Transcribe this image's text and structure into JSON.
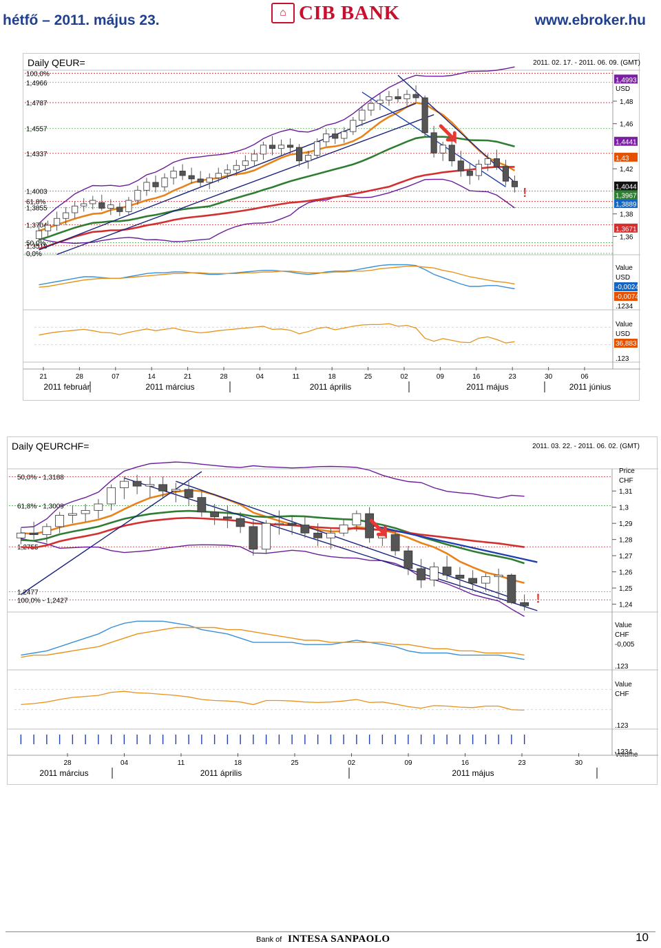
{
  "header": {
    "date": "hétfő – 2011. május 23.",
    "bank": "CIB BANK",
    "site": "www.ebroker.hu"
  },
  "footer": {
    "bank_of": "Bank of",
    "intesa": "INTESA SANPAOLO",
    "page": "10"
  },
  "colors": {
    "ma_orange": "#e8821a",
    "ma_green": "#2e7d32",
    "ma_red": "#d32f2f",
    "band_purple": "#6a1b9a",
    "trend_navy": "#1a237e",
    "trend_blue": "#1e3fb0",
    "osc_blue": "#3a8fd6",
    "osc_orange": "#e8921a",
    "fib_green": "#4caf50",
    "fib_red": "#c62828",
    "label_purple": "#7b1fa2",
    "label_blue": "#1565c0",
    "label_orange": "#e65100",
    "label_black": "#111111",
    "label_red": "#d32f2f",
    "signal_red": "#e53935"
  },
  "chart_data": [
    {
      "type": "candlestick",
      "title": "Daily QEUR=",
      "range": "2011. 02. 17. - 2011. 06. 09. (GMT)",
      "price_unit": "USD",
      "ylim": [
        1.345,
        1.505
      ],
      "y_ticks": [
        "1,48",
        "1,46",
        "1,42",
        "1,38",
        "1,36"
      ],
      "fib_levels": [
        {
          "label": "100,0%",
          "value": 1.5048
        },
        {
          "label": "1,4966",
          "value": 1.4966
        },
        {
          "label": "1,4787",
          "value": 1.4787
        },
        {
          "label": "1,4557",
          "value": 1.4557
        },
        {
          "label": "1,4337",
          "value": 1.4337
        },
        {
          "label": "1,4003",
          "value": 1.4003
        },
        {
          "label": "61,8%",
          "value": 1.391
        },
        {
          "label": "1,3855",
          "value": 1.3855
        },
        {
          "label": "1,3704",
          "value": 1.3704
        },
        {
          "label": "50,0%",
          "value": 1.3545
        },
        {
          "label": "1,3518",
          "value": 1.3518
        },
        {
          "label": "0,0%",
          "value": 1.345
        }
      ],
      "value_labels": [
        {
          "text": "1,4993",
          "value": 1.4993,
          "color": "label_purple"
        },
        {
          "text": "USD",
          "value": 1.4915,
          "color": "none"
        },
        {
          "text": "1,4441",
          "value": 1.4441,
          "color": "label_purple"
        },
        {
          "text": "1,43",
          "value": 1.43,
          "color": "label_orange"
        },
        {
          "text": "1,4044",
          "value": 1.4044,
          "color": "label_black"
        },
        {
          "text": "1,3967",
          "value": 1.3967,
          "color": "label_green"
        },
        {
          "text": "1,3889",
          "value": 1.3889,
          "color": "label_blue"
        },
        {
          "text": "1,3671",
          "value": 1.3671,
          "color": "label_red"
        }
      ],
      "ohlc": [
        [
          1.358,
          1.372,
          1.352,
          1.365
        ],
        [
          1.365,
          1.374,
          1.36,
          1.37
        ],
        [
          1.37,
          1.382,
          1.365,
          1.376
        ],
        [
          1.376,
          1.386,
          1.37,
          1.381
        ],
        [
          1.381,
          1.391,
          1.376,
          1.387
        ],
        [
          1.387,
          1.394,
          1.382,
          1.389
        ],
        [
          1.389,
          1.396,
          1.384,
          1.392
        ],
        [
          1.39,
          1.397,
          1.383,
          1.385
        ],
        [
          1.385,
          1.393,
          1.379,
          1.388
        ],
        [
          1.386,
          1.39,
          1.378,
          1.382
        ],
        [
          1.382,
          1.395,
          1.379,
          1.392
        ],
        [
          1.392,
          1.405,
          1.388,
          1.401
        ],
        [
          1.401,
          1.412,
          1.396,
          1.408
        ],
        [
          1.408,
          1.414,
          1.399,
          1.404
        ],
        [
          1.404,
          1.416,
          1.4,
          1.412
        ],
        [
          1.412,
          1.422,
          1.406,
          1.418
        ],
        [
          1.418,
          1.424,
          1.41,
          1.414
        ],
        [
          1.414,
          1.421,
          1.407,
          1.411
        ],
        [
          1.411,
          1.418,
          1.404,
          1.408
        ],
        [
          1.408,
          1.416,
          1.402,
          1.412
        ],
        [
          1.412,
          1.421,
          1.408,
          1.416
        ],
        [
          1.416,
          1.424,
          1.411,
          1.419
        ],
        [
          1.419,
          1.428,
          1.414,
          1.423
        ],
        [
          1.423,
          1.432,
          1.418,
          1.427
        ],
        [
          1.427,
          1.437,
          1.422,
          1.433
        ],
        [
          1.433,
          1.444,
          1.428,
          1.441
        ],
        [
          1.441,
          1.449,
          1.432,
          1.438
        ],
        [
          1.438,
          1.446,
          1.431,
          1.441
        ],
        [
          1.441,
          1.447,
          1.434,
          1.439
        ],
        [
          1.439,
          1.442,
          1.422,
          1.427
        ],
        [
          1.427,
          1.436,
          1.42,
          1.432
        ],
        [
          1.432,
          1.447,
          1.429,
          1.444
        ],
        [
          1.444,
          1.455,
          1.44,
          1.451
        ],
        [
          1.451,
          1.456,
          1.442,
          1.447
        ],
        [
          1.447,
          1.457,
          1.443,
          1.453
        ],
        [
          1.453,
          1.466,
          1.45,
          1.463
        ],
        [
          1.463,
          1.476,
          1.458,
          1.472
        ],
        [
          1.472,
          1.482,
          1.467,
          1.478
        ],
        [
          1.478,
          1.487,
          1.472,
          1.481
        ],
        [
          1.481,
          1.489,
          1.476,
          1.484
        ],
        [
          1.484,
          1.491,
          1.479,
          1.482
        ],
        [
          1.482,
          1.49,
          1.476,
          1.486
        ],
        [
          1.486,
          1.494,
          1.479,
          1.483
        ],
        [
          1.483,
          1.485,
          1.448,
          1.452
        ],
        [
          1.452,
          1.458,
          1.43,
          1.434
        ],
        [
          1.434,
          1.444,
          1.427,
          1.441
        ],
        [
          1.441,
          1.447,
          1.422,
          1.427
        ],
        [
          1.427,
          1.436,
          1.413,
          1.418
        ],
        [
          1.418,
          1.425,
          1.406,
          1.414
        ],
        [
          1.414,
          1.428,
          1.41,
          1.424
        ],
        [
          1.424,
          1.433,
          1.418,
          1.429
        ],
        [
          1.429,
          1.437,
          1.419,
          1.422
        ],
        [
          1.422,
          1.428,
          1.405,
          1.409
        ],
        [
          1.409,
          1.414,
          1.399,
          1.404
        ]
      ],
      "macd": {
        "ylim": [
          -0.03,
          0.03
        ],
        "value_labels": [
          "Value",
          "USD",
          "-0,0024",
          "-0,0074"
        ],
        "tick_label": ".1234",
        "line1": [
          -0.004,
          -0.002,
          0.0,
          0.002,
          0.004,
          0.006,
          0.006,
          0.005,
          0.004,
          0.004,
          0.006,
          0.008,
          0.01,
          0.011,
          0.011,
          0.012,
          0.012,
          0.011,
          0.01,
          0.009,
          0.009,
          0.01,
          0.011,
          0.012,
          0.013,
          0.014,
          0.014,
          0.013,
          0.012,
          0.01,
          0.009,
          0.01,
          0.012,
          0.013,
          0.013,
          0.014,
          0.016,
          0.018,
          0.02,
          0.021,
          0.021,
          0.021,
          0.02,
          0.015,
          0.009,
          0.005,
          0.001,
          -0.003,
          -0.006,
          -0.006,
          -0.005,
          -0.005,
          -0.007,
          -0.009
        ],
        "line2": [
          -0.007,
          -0.006,
          -0.004,
          -0.002,
          0.0,
          0.002,
          0.003,
          0.004,
          0.004,
          0.004,
          0.005,
          0.006,
          0.007,
          0.008,
          0.009,
          0.01,
          0.01,
          0.011,
          0.011,
          0.01,
          0.01,
          0.01,
          0.01,
          0.011,
          0.011,
          0.012,
          0.012,
          0.013,
          0.013,
          0.012,
          0.011,
          0.011,
          0.011,
          0.012,
          0.012,
          0.013,
          0.013,
          0.014,
          0.016,
          0.017,
          0.018,
          0.019,
          0.019,
          0.018,
          0.017,
          0.014,
          0.012,
          0.009,
          0.006,
          0.004,
          0.002,
          0.0,
          -0.001,
          -0.003
        ]
      },
      "rsi": {
        "ylim": [
          0,
          100
        ],
        "value_labels": [
          "Value",
          "USD",
          "36,883"
        ],
        "tick_label": ".123",
        "line": [
          52,
          56,
          59,
          61,
          63,
          65,
          62,
          58,
          57,
          53,
          58,
          62,
          66,
          62,
          65,
          68,
          63,
          60,
          57,
          59,
          62,
          64,
          66,
          68,
          70,
          72,
          65,
          66,
          63,
          55,
          60,
          67,
          70,
          64,
          68,
          72,
          75,
          76,
          76,
          78,
          72,
          74,
          68,
          45,
          38,
          44,
          40,
          36,
          35,
          45,
          48,
          42,
          34,
          37
        ]
      },
      "x_ticks": [
        "21",
        "28",
        "07",
        "14",
        "21",
        "28",
        "04",
        "11",
        "18",
        "25",
        "02",
        "09",
        "16",
        "23",
        "30",
        "06"
      ],
      "months": [
        "2011 február",
        "2011 március",
        "2011 április",
        "2011 május",
        "2011 június"
      ]
    },
    {
      "type": "candlestick",
      "title": "Daily QEURCHF=",
      "range": "2011. 03. 22. - 2011. 06. 02. (GMT)",
      "price_unit": "CHF",
      "ylim": [
        1.236,
        1.322
      ],
      "y_ticks": [
        "Price",
        "CHF",
        "1,31",
        "1,3",
        "1,29",
        "1,28",
        "1,27",
        "1,26",
        "1,25",
        "1,24"
      ],
      "fib_levels": [
        {
          "label": "50,0% - 1,3188",
          "value": 1.3188
        },
        {
          "label": "61,8% - 1,3009",
          "value": 1.3009
        },
        {
          "label": "1,2755",
          "value": 1.2755
        },
        {
          "label": "1,2477",
          "value": 1.2477
        },
        {
          "label": "100,0% - 1,2427",
          "value": 1.2427
        }
      ],
      "ohlc": [
        [
          1.281,
          1.287,
          1.277,
          1.284
        ],
        [
          1.284,
          1.291,
          1.28,
          1.283
        ],
        [
          1.283,
          1.29,
          1.278,
          1.288
        ],
        [
          1.288,
          1.297,
          1.284,
          1.295
        ],
        [
          1.295,
          1.301,
          1.29,
          1.296
        ],
        [
          1.296,
          1.302,
          1.291,
          1.298
        ],
        [
          1.298,
          1.305,
          1.293,
          1.302
        ],
        [
          1.302,
          1.314,
          1.298,
          1.312
        ],
        [
          1.312,
          1.319,
          1.305,
          1.316
        ],
        [
          1.316,
          1.32,
          1.308,
          1.313
        ],
        [
          1.313,
          1.319,
          1.306,
          1.314
        ],
        [
          1.314,
          1.319,
          1.306,
          1.31
        ],
        [
          1.31,
          1.315,
          1.303,
          1.311
        ],
        [
          1.311,
          1.316,
          1.301,
          1.306
        ],
        [
          1.306,
          1.31,
          1.294,
          1.297
        ],
        [
          1.297,
          1.302,
          1.289,
          1.294
        ],
        [
          1.294,
          1.301,
          1.287,
          1.293
        ],
        [
          1.293,
          1.297,
          1.284,
          1.288
        ],
        [
          1.288,
          1.292,
          1.27,
          1.274
        ],
        [
          1.274,
          1.292,
          1.271,
          1.29
        ],
        [
          1.29,
          1.298,
          1.283,
          1.29
        ],
        [
          1.29,
          1.295,
          1.283,
          1.289
        ],
        [
          1.289,
          1.294,
          1.281,
          1.284
        ],
        [
          1.284,
          1.29,
          1.276,
          1.281
        ],
        [
          1.281,
          1.287,
          1.274,
          1.284
        ],
        [
          1.284,
          1.292,
          1.282,
          1.289
        ],
        [
          1.289,
          1.298,
          1.285,
          1.296
        ],
        [
          1.296,
          1.3,
          1.278,
          1.281
        ],
        [
          1.281,
          1.288,
          1.276,
          1.283
        ],
        [
          1.283,
          1.286,
          1.27,
          1.273
        ],
        [
          1.273,
          1.276,
          1.258,
          1.262
        ],
        [
          1.262,
          1.268,
          1.25,
          1.255
        ],
        [
          1.255,
          1.266,
          1.251,
          1.263
        ],
        [
          1.263,
          1.27,
          1.255,
          1.258
        ],
        [
          1.258,
          1.263,
          1.25,
          1.256
        ],
        [
          1.256,
          1.261,
          1.249,
          1.253
        ],
        [
          1.253,
          1.259,
          1.248,
          1.257
        ],
        [
          1.257,
          1.262,
          1.244,
          1.258
        ],
        [
          1.258,
          1.259,
          1.24,
          1.241
        ],
        [
          1.241,
          1.246,
          1.236,
          1.239
        ]
      ],
      "macd": {
        "ylim": [
          -0.012,
          0.012
        ],
        "value_labels": [
          "Value",
          "CHF",
          "-0,005"
        ],
        "tick_label": ".123",
        "line1": [
          -0.007,
          -0.006,
          -0.005,
          -0.003,
          -0.001,
          0.001,
          0.003,
          0.006,
          0.008,
          0.009,
          0.009,
          0.009,
          0.008,
          0.007,
          0.005,
          0.004,
          0.003,
          0.001,
          -0.001,
          -0.001,
          -0.001,
          -0.001,
          -0.002,
          -0.002,
          -0.002,
          -0.001,
          0.0,
          -0.001,
          -0.002,
          -0.003,
          -0.005,
          -0.006,
          -0.006,
          -0.006,
          -0.007,
          -0.007,
          -0.007,
          -0.007,
          -0.008,
          -0.009
        ],
        "line2": [
          -0.008,
          -0.007,
          -0.007,
          -0.006,
          -0.005,
          -0.004,
          -0.003,
          -0.001,
          0.001,
          0.003,
          0.004,
          0.005,
          0.006,
          0.006,
          0.006,
          0.006,
          0.005,
          0.005,
          0.004,
          0.003,
          0.002,
          0.001,
          0.0,
          0.0,
          -0.001,
          -0.001,
          -0.001,
          -0.001,
          -0.001,
          -0.002,
          -0.002,
          -0.003,
          -0.004,
          -0.004,
          -0.005,
          -0.005,
          -0.006,
          -0.006,
          -0.006,
          -0.007
        ]
      },
      "rsi": {
        "ylim": [
          0,
          100
        ],
        "value_labels": [
          "Value",
          "CHF"
        ],
        "tick_label": ".123",
        "line": [
          40,
          42,
          45,
          50,
          54,
          56,
          58,
          64,
          66,
          63,
          62,
          60,
          58,
          55,
          50,
          48,
          47,
          45,
          40,
          48,
          48,
          47,
          45,
          44,
          45,
          47,
          50,
          44,
          45,
          41,
          36,
          33,
          38,
          37,
          35,
          34,
          37,
          37,
          30,
          29
        ]
      },
      "volume": {
        "value_labels": [
          "Volume"
        ],
        "tick_label": ".1234"
      },
      "x_ticks": [
        "28",
        "04",
        "11",
        "18",
        "25",
        "02",
        "09",
        "16",
        "23",
        "30"
      ],
      "months": [
        "2011 március",
        "2011 április",
        "2011 május"
      ]
    }
  ]
}
